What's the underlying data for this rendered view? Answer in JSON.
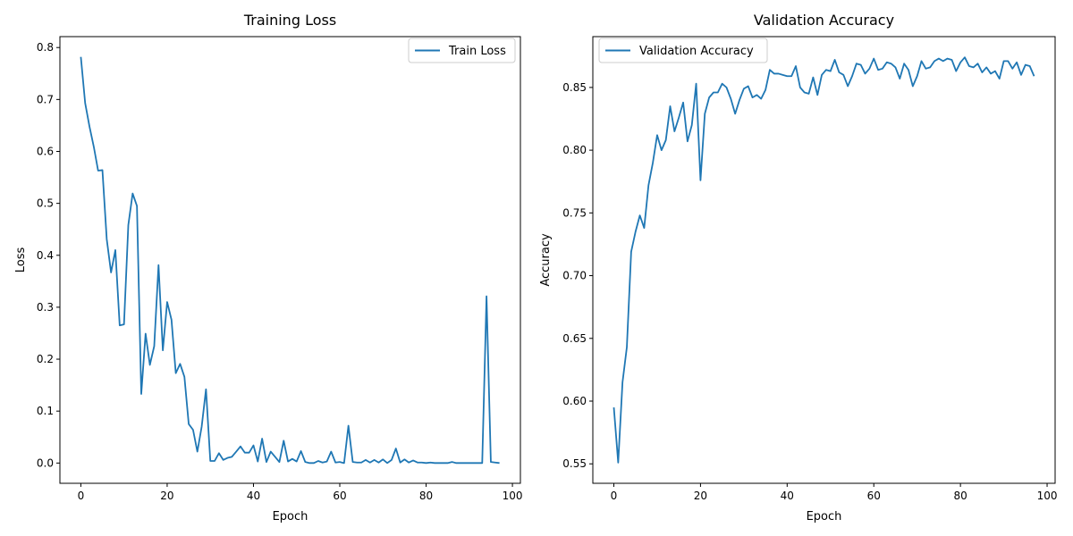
{
  "chart_data": [
    {
      "type": "line",
      "title": "Training Loss",
      "xlabel": "Epoch",
      "ylabel": "Loss",
      "xlim": [
        -4.85,
        101.85
      ],
      "ylim": [
        -0.039,
        0.821
      ],
      "xticks": [
        0,
        20,
        40,
        60,
        80,
        100
      ],
      "yticks": [
        0.0,
        0.1,
        0.2,
        0.3,
        0.4,
        0.5,
        0.6,
        0.7,
        0.8
      ],
      "ytick_labels": [
        "0.0",
        "0.1",
        "0.2",
        "0.3",
        "0.4",
        "0.5",
        "0.6",
        "0.7",
        "0.8"
      ],
      "grid": false,
      "legend_position": "upper right",
      "color": "#1f77b4",
      "series": [
        {
          "name": "Train Loss",
          "x_start": 0,
          "values": [
            0.782,
            0.693,
            0.648,
            0.609,
            0.563,
            0.564,
            0.431,
            0.367,
            0.41,
            0.265,
            0.267,
            0.458,
            0.519,
            0.495,
            0.133,
            0.249,
            0.189,
            0.225,
            0.381,
            0.217,
            0.31,
            0.276,
            0.173,
            0.191,
            0.166,
            0.075,
            0.064,
            0.022,
            0.07,
            0.142,
            0.004,
            0.004,
            0.019,
            0.006,
            0.01,
            0.012,
            0.022,
            0.032,
            0.02,
            0.02,
            0.034,
            0.003,
            0.047,
            0.002,
            0.022,
            0.012,
            0.002,
            0.043,
            0.003,
            0.008,
            0.003,
            0.023,
            0.002,
            0.0,
            0.0,
            0.004,
            0.001,
            0.003,
            0.022,
            0.001,
            0.002,
            0.0,
            0.072,
            0.002,
            0.001,
            0.001,
            0.006,
            0.001,
            0.006,
            0.001,
            0.007,
            0.0,
            0.006,
            0.028,
            0.001,
            0.007,
            0.001,
            0.005,
            0.001,
            0.001,
            0.0,
            0.001,
            0.0,
            0.0,
            0.0,
            0.0,
            0.002,
            0.0,
            0.0,
            0.0,
            0.0,
            0.0,
            0.0,
            0.0,
            0.321,
            0.002,
            0.001,
            0.0
          ]
        }
      ]
    },
    {
      "type": "line",
      "title": "Validation Accuracy",
      "xlabel": "Epoch",
      "ylabel": "Accuracy",
      "xlim": [
        -4.85,
        101.85
      ],
      "ylim": [
        0.5345,
        0.8905
      ],
      "xticks": [
        0,
        20,
        40,
        60,
        80,
        100
      ],
      "yticks": [
        0.55,
        0.6,
        0.65,
        0.7,
        0.75,
        0.8,
        0.85
      ],
      "ytick_labels": [
        "0.55",
        "0.60",
        "0.65",
        "0.70",
        "0.75",
        "0.80",
        "0.85"
      ],
      "grid": false,
      "legend_position": "upper left",
      "color": "#1f77b4",
      "series": [
        {
          "name": "Validation Accuracy",
          "x_start": 0,
          "values": [
            0.595,
            0.551,
            0.615,
            0.643,
            0.719,
            0.735,
            0.748,
            0.738,
            0.772,
            0.79,
            0.812,
            0.8,
            0.808,
            0.835,
            0.815,
            0.826,
            0.838,
            0.807,
            0.82,
            0.853,
            0.776,
            0.829,
            0.842,
            0.846,
            0.846,
            0.853,
            0.85,
            0.841,
            0.829,
            0.84,
            0.849,
            0.851,
            0.842,
            0.844,
            0.841,
            0.848,
            0.864,
            0.861,
            0.861,
            0.86,
            0.859,
            0.859,
            0.867,
            0.85,
            0.846,
            0.845,
            0.858,
            0.844,
            0.86,
            0.864,
            0.863,
            0.872,
            0.862,
            0.86,
            0.851,
            0.859,
            0.869,
            0.868,
            0.861,
            0.865,
            0.873,
            0.864,
            0.865,
            0.87,
            0.869,
            0.866,
            0.857,
            0.869,
            0.864,
            0.851,
            0.859,
            0.871,
            0.865,
            0.866,
            0.871,
            0.873,
            0.871,
            0.873,
            0.872,
            0.863,
            0.87,
            0.874,
            0.867,
            0.866,
            0.869,
            0.862,
            0.866,
            0.861,
            0.863,
            0.857,
            0.871,
            0.871,
            0.865,
            0.87,
            0.86,
            0.868,
            0.867,
            0.859
          ]
        }
      ]
    }
  ]
}
